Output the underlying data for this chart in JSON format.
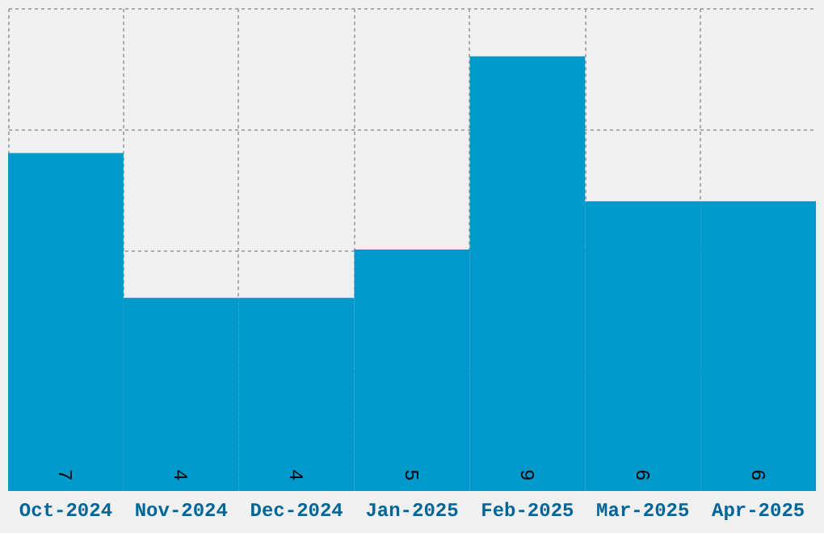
{
  "chart_data": {
    "type": "bar",
    "categories": [
      "Oct-2024",
      "Nov-2024",
      "Dec-2024",
      "Jan-2025",
      "Feb-2025",
      "Mar-2025",
      "Apr-2025"
    ],
    "values": [
      7,
      4,
      4,
      5,
      9,
      6,
      6
    ],
    "color": "#0099cc",
    "ylim": [
      0,
      10
    ],
    "yticks": [
      {
        "value": 2.5,
        "label": null
      },
      {
        "value": 5,
        "label": null
      },
      {
        "value": 7.5,
        "label": null
      },
      {
        "value": 10,
        "label": null
      }
    ],
    "grid": true,
    "data_labels": true,
    "tick_labels": "x"
  }
}
